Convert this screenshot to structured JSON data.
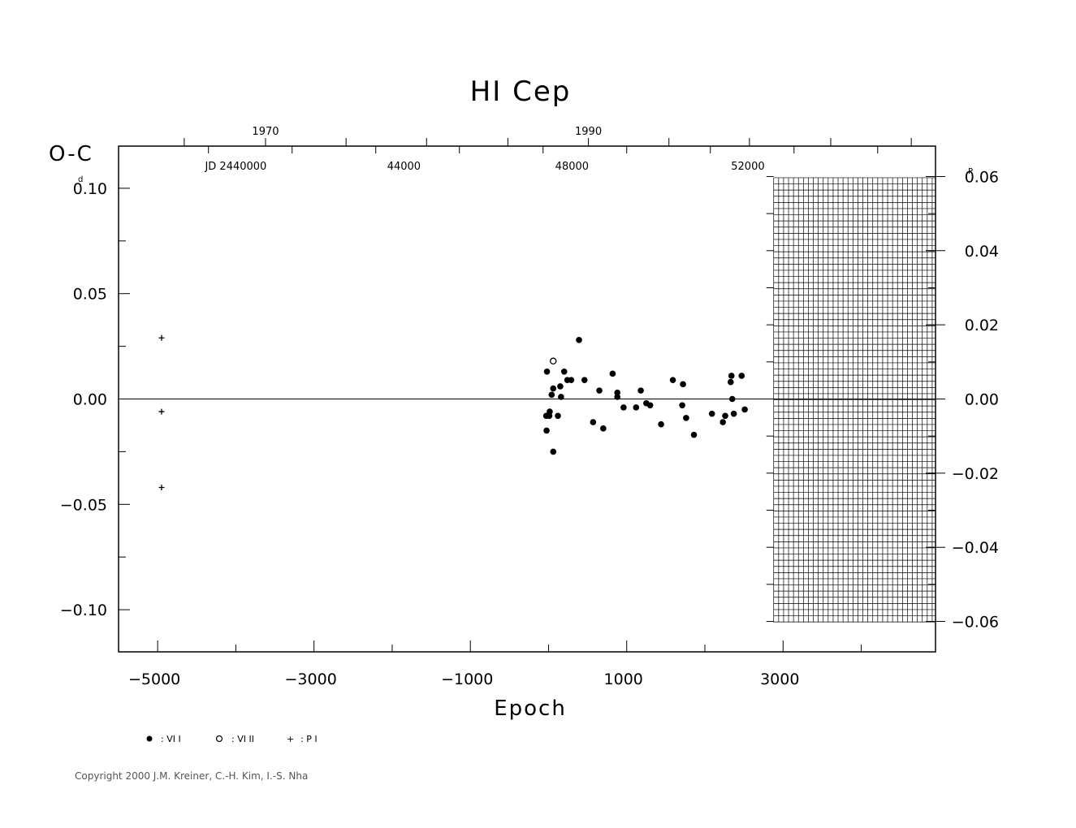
{
  "chart_data": {
    "type": "scatter",
    "title": "HI Cep",
    "ylabel": "O-C",
    "ylabel_unit": "d",
    "y2_unit": "P",
    "xlabel": "Epoch",
    "xlim": [
      -5500,
      4950
    ],
    "ylim": [
      -0.12,
      0.12
    ],
    "y2lim": [
      -0.0682,
      0.0682
    ],
    "x_ticks": [
      {
        "value": -5000,
        "label": "−5000"
      },
      {
        "value": -3000,
        "label": "−3000"
      },
      {
        "value": -1000,
        "label": "−1000"
      },
      {
        "value": 1000,
        "label": "1000"
      },
      {
        "value": 3000,
        "label": "3000"
      }
    ],
    "x_minor_ticks": [
      -4000,
      -2000,
      0,
      2000,
      4000
    ],
    "y_ticks": [
      {
        "value": 0.1,
        "label": "0.10"
      },
      {
        "value": 0.05,
        "label": "0.05"
      },
      {
        "value": 0.0,
        "label": "0.00"
      },
      {
        "value": -0.05,
        "label": "−0.05"
      },
      {
        "value": -0.1,
        "label": "−0.10"
      }
    ],
    "y2_ticks": [
      {
        "value": 0.06,
        "label": "0.06"
      },
      {
        "value": 0.04,
        "label": "0.04"
      },
      {
        "value": 0.02,
        "label": "0.02"
      },
      {
        "value": 0.0,
        "label": "0.00"
      },
      {
        "value": -0.02,
        "label": "−0.02"
      },
      {
        "value": -0.04,
        "label": "−0.04"
      },
      {
        "value": -0.06,
        "label": "−0.06"
      }
    ],
    "top_year_ticks": [
      {
        "epoch": -4660,
        "label": ""
      },
      {
        "epoch": -3620,
        "label": "1970"
      },
      {
        "epoch": -2590,
        "label": ""
      },
      {
        "epoch": -1560,
        "label": ""
      },
      {
        "epoch": -520,
        "label": ""
      },
      {
        "epoch": 510,
        "label": "1990"
      },
      {
        "epoch": 1540,
        "label": ""
      },
      {
        "epoch": 2570,
        "label": ""
      },
      {
        "epoch": 3610,
        "label": ""
      },
      {
        "epoch": 4640,
        "label": ""
      }
    ],
    "top_jd_labels": [
      {
        "epoch": -4000,
        "label": "JD  2440000"
      },
      {
        "epoch": -1850,
        "label": "44000"
      },
      {
        "epoch": 300,
        "label": "48000"
      },
      {
        "epoch": 2550,
        "label": "52000"
      }
    ],
    "hatched_region": {
      "x_from": 2880,
      "x_to": 4950,
      "y_from": -0.106,
      "y_to": 0.105
    },
    "series": [
      {
        "name": "VI I",
        "marker": "filled-circle",
        "points": [
          [
            -20,
            0.013
          ],
          [
            -30,
            -0.008
          ],
          [
            -25,
            -0.015
          ],
          [
            10,
            -0.008
          ],
          [
            15,
            -0.006
          ],
          [
            40,
            0.002
          ],
          [
            60,
            0.005
          ],
          [
            60,
            -0.025
          ],
          [
            120,
            -0.008
          ],
          [
            150,
            0.006
          ],
          [
            160,
            0.001
          ],
          [
            200,
            0.013
          ],
          [
            240,
            0.009
          ],
          [
            290,
            0.009
          ],
          [
            390,
            0.028
          ],
          [
            460,
            0.009
          ],
          [
            570,
            -0.011
          ],
          [
            650,
            0.004
          ],
          [
            700,
            -0.014
          ],
          [
            820,
            0.012
          ],
          [
            880,
            0.001
          ],
          [
            880,
            0.003
          ],
          [
            960,
            -0.004
          ],
          [
            1120,
            -0.004
          ],
          [
            1180,
            0.004
          ],
          [
            1250,
            -0.002
          ],
          [
            1300,
            -0.003
          ],
          [
            1440,
            -0.012
          ],
          [
            1590,
            0.009
          ],
          [
            1710,
            -0.003
          ],
          [
            1720,
            0.007
          ],
          [
            1760,
            -0.009
          ],
          [
            1860,
            -0.017
          ],
          [
            2090,
            -0.007
          ],
          [
            2230,
            -0.011
          ],
          [
            2260,
            -0.008
          ],
          [
            2330,
            0.008
          ],
          [
            2340,
            0.011
          ],
          [
            2350,
            0.0
          ],
          [
            2370,
            -0.007
          ],
          [
            2470,
            0.011
          ],
          [
            2510,
            -0.005
          ]
        ]
      },
      {
        "name": "VI II",
        "marker": "open-circle",
        "points": [
          [
            60,
            0.018
          ]
        ]
      },
      {
        "name": "P I",
        "marker": "plus",
        "points": [
          [
            -4950,
            0.029
          ],
          [
            -4950,
            -0.006
          ],
          [
            -4950,
            -0.042
          ]
        ]
      }
    ]
  },
  "legend": [
    {
      "symbol": "●",
      "label": ": VI I"
    },
    {
      "symbol": "○",
      "label": ": VI II"
    },
    {
      "symbol": "+",
      "label": ": P I"
    }
  ],
  "copyright": "Copyright 2000 J.M. Kreiner, C.-H. Kim, I.-S. Nha"
}
